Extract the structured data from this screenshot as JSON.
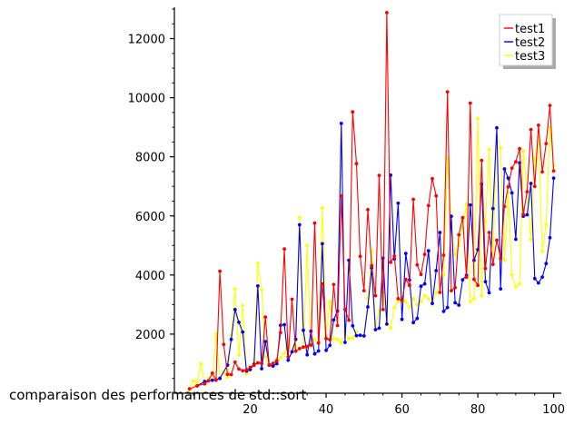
{
  "chart_data": {
    "type": "line",
    "title": "comparaison des performances de std::sort",
    "xlabel": "",
    "ylabel": "",
    "xlim": [
      0,
      102
    ],
    "ylim": [
      0,
      13000
    ],
    "x_ticks": [
      20,
      40,
      60,
      80,
      100
    ],
    "y_ticks": [
      2000,
      4000,
      6000,
      8000,
      10000,
      12000
    ],
    "grid": false,
    "legend_position": "top-right",
    "series": [
      {
        "name": "test1",
        "color": "#ff0000",
        "marker": "dot",
        "points": [
          [
            4,
            150
          ],
          [
            6,
            250
          ],
          [
            8,
            320
          ],
          [
            9,
            420
          ],
          [
            10,
            680
          ],
          [
            11,
            440
          ],
          [
            12,
            4130
          ],
          [
            13,
            1650
          ],
          [
            14,
            640
          ],
          [
            15,
            630
          ],
          [
            16,
            1050
          ],
          [
            17,
            820
          ],
          [
            18,
            760
          ],
          [
            19,
            790
          ],
          [
            20,
            880
          ],
          [
            21,
            940
          ],
          [
            22,
            1030
          ],
          [
            23,
            1010
          ],
          [
            24,
            2580
          ],
          [
            25,
            960
          ],
          [
            26,
            1010
          ],
          [
            27,
            1100
          ],
          [
            28,
            2050
          ],
          [
            29,
            4880
          ],
          [
            30,
            1230
          ],
          [
            31,
            3180
          ],
          [
            32,
            1420
          ],
          [
            33,
            1510
          ],
          [
            34,
            1560
          ],
          [
            35,
            1580
          ],
          [
            36,
            1630
          ],
          [
            37,
            5760
          ],
          [
            38,
            1700
          ],
          [
            39,
            3700
          ],
          [
            40,
            1850
          ],
          [
            41,
            1810
          ],
          [
            42,
            3680
          ],
          [
            43,
            2290
          ],
          [
            44,
            6680
          ],
          [
            45,
            2840
          ],
          [
            46,
            2470
          ],
          [
            47,
            9520
          ],
          [
            48,
            7770
          ],
          [
            49,
            4630
          ],
          [
            50,
            3470
          ],
          [
            51,
            6210
          ],
          [
            52,
            4320
          ],
          [
            53,
            3300
          ],
          [
            54,
            7370
          ],
          [
            55,
            2830
          ],
          [
            56,
            12880
          ],
          [
            57,
            4430
          ],
          [
            58,
            4640
          ],
          [
            59,
            3200
          ],
          [
            60,
            3140
          ],
          [
            61,
            3850
          ],
          [
            62,
            3650
          ],
          [
            63,
            6560
          ],
          [
            64,
            4340
          ],
          [
            65,
            4020
          ],
          [
            66,
            4700
          ],
          [
            67,
            6350
          ],
          [
            68,
            7260
          ],
          [
            69,
            6680
          ],
          [
            70,
            3410
          ],
          [
            71,
            4670
          ],
          [
            72,
            10200
          ],
          [
            73,
            3470
          ],
          [
            74,
            3570
          ],
          [
            75,
            5360
          ],
          [
            76,
            5940
          ],
          [
            77,
            3920
          ],
          [
            78,
            9820
          ],
          [
            79,
            3850
          ],
          [
            80,
            3650
          ],
          [
            81,
            7880
          ],
          [
            82,
            4220
          ],
          [
            83,
            5440
          ],
          [
            84,
            4360
          ],
          [
            85,
            5180
          ],
          [
            86,
            4560
          ],
          [
            87,
            6320
          ],
          [
            88,
            6980
          ],
          [
            89,
            7620
          ],
          [
            90,
            7830
          ],
          [
            91,
            8280
          ],
          [
            92,
            6050
          ],
          [
            93,
            6820
          ],
          [
            94,
            8920
          ],
          [
            95,
            7000
          ],
          [
            96,
            9070
          ],
          [
            97,
            7490
          ],
          [
            98,
            8450
          ],
          [
            99,
            9740
          ],
          [
            100,
            7520
          ]
        ]
      },
      {
        "name": "test2",
        "color": "#0000ff",
        "marker": "dot",
        "points": [
          [
            6,
            250
          ],
          [
            8,
            400
          ],
          [
            10,
            440
          ],
          [
            12,
            500
          ],
          [
            14,
            950
          ],
          [
            15,
            1820
          ],
          [
            16,
            2830
          ],
          [
            17,
            2400
          ],
          [
            18,
            2070
          ],
          [
            19,
            750
          ],
          [
            20,
            800
          ],
          [
            21,
            980
          ],
          [
            22,
            3630
          ],
          [
            23,
            830
          ],
          [
            24,
            1750
          ],
          [
            25,
            950
          ],
          [
            26,
            920
          ],
          [
            27,
            1000
          ],
          [
            28,
            2300
          ],
          [
            29,
            2320
          ],
          [
            30,
            1120
          ],
          [
            31,
            1400
          ],
          [
            32,
            1820
          ],
          [
            33,
            5700
          ],
          [
            34,
            2130
          ],
          [
            35,
            1300
          ],
          [
            36,
            2100
          ],
          [
            37,
            1330
          ],
          [
            38,
            1430
          ],
          [
            39,
            5060
          ],
          [
            40,
            1450
          ],
          [
            41,
            1620
          ],
          [
            42,
            2480
          ],
          [
            43,
            2780
          ],
          [
            44,
            9130
          ],
          [
            45,
            1720
          ],
          [
            46,
            4500
          ],
          [
            47,
            2280
          ],
          [
            48,
            1950
          ],
          [
            49,
            1960
          ],
          [
            50,
            1940
          ],
          [
            51,
            2920
          ],
          [
            52,
            4240
          ],
          [
            53,
            2150
          ],
          [
            54,
            2200
          ],
          [
            55,
            4570
          ],
          [
            56,
            2340
          ],
          [
            57,
            7380
          ],
          [
            58,
            4540
          ],
          [
            59,
            6430
          ],
          [
            60,
            2500
          ],
          [
            61,
            4730
          ],
          [
            62,
            3830
          ],
          [
            63,
            2390
          ],
          [
            64,
            2530
          ],
          [
            65,
            3620
          ],
          [
            66,
            3700
          ],
          [
            67,
            4820
          ],
          [
            68,
            3040
          ],
          [
            69,
            4150
          ],
          [
            70,
            5440
          ],
          [
            71,
            2770
          ],
          [
            72,
            2900
          ],
          [
            73,
            5990
          ],
          [
            74,
            3060
          ],
          [
            75,
            2980
          ],
          [
            76,
            3840
          ],
          [
            77,
            3990
          ],
          [
            78,
            6370
          ],
          [
            79,
            4500
          ],
          [
            80,
            4860
          ],
          [
            81,
            7080
          ],
          [
            82,
            3770
          ],
          [
            83,
            3400
          ],
          [
            84,
            6250
          ],
          [
            85,
            8980
          ],
          [
            86,
            3530
          ],
          [
            87,
            7590
          ],
          [
            88,
            7280
          ],
          [
            89,
            6780
          ],
          [
            90,
            5210
          ],
          [
            91,
            7800
          ],
          [
            92,
            5990
          ],
          [
            93,
            6040
          ],
          [
            94,
            7100
          ],
          [
            95,
            3880
          ],
          [
            96,
            3730
          ],
          [
            97,
            3930
          ],
          [
            98,
            4390
          ],
          [
            99,
            5260
          ],
          [
            100,
            7280
          ]
        ]
      },
      {
        "name": "test3",
        "color": "#ffff00",
        "marker": "dot",
        "points": [
          [
            4,
            100
          ],
          [
            5,
            420
          ],
          [
            6,
            350
          ],
          [
            7,
            1000
          ],
          [
            8,
            300
          ],
          [
            9,
            500
          ],
          [
            10,
            450
          ],
          [
            11,
            2000
          ],
          [
            12,
            480
          ],
          [
            13,
            700
          ],
          [
            14,
            540
          ],
          [
            15,
            1950
          ],
          [
            16,
            3530
          ],
          [
            17,
            1300
          ],
          [
            18,
            2970
          ],
          [
            19,
            650
          ],
          [
            20,
            800
          ],
          [
            21,
            1100
          ],
          [
            22,
            4400
          ],
          [
            23,
            3500
          ],
          [
            24,
            1220
          ],
          [
            25,
            950
          ],
          [
            26,
            1000
          ],
          [
            27,
            1140
          ],
          [
            28,
            1200
          ],
          [
            29,
            1350
          ],
          [
            30,
            1800
          ],
          [
            31,
            1400
          ],
          [
            32,
            1600
          ],
          [
            33,
            5950
          ],
          [
            34,
            1550
          ],
          [
            35,
            5000
          ],
          [
            36,
            1590
          ],
          [
            37,
            1820
          ],
          [
            38,
            1750
          ],
          [
            39,
            6270
          ],
          [
            40,
            1950
          ],
          [
            41,
            3100
          ],
          [
            42,
            1850
          ],
          [
            43,
            1820
          ],
          [
            44,
            1700
          ],
          [
            45,
            2050
          ],
          [
            46,
            1850
          ],
          [
            47,
            1870
          ],
          [
            48,
            2080
          ],
          [
            49,
            1940
          ],
          [
            50,
            1920
          ],
          [
            51,
            3200
          ],
          [
            52,
            4800
          ],
          [
            53,
            2300
          ],
          [
            54,
            2800
          ],
          [
            55,
            3400
          ],
          [
            56,
            2400
          ],
          [
            57,
            2200
          ],
          [
            58,
            2900
          ],
          [
            59,
            3100
          ],
          [
            60,
            3200
          ],
          [
            61,
            3100
          ],
          [
            62,
            2900
          ],
          [
            63,
            3200
          ],
          [
            64,
            3000
          ],
          [
            65,
            3100
          ],
          [
            66,
            3300
          ],
          [
            67,
            3200
          ],
          [
            68,
            3000
          ],
          [
            69,
            3400
          ],
          [
            70,
            3500
          ],
          [
            71,
            4000
          ],
          [
            72,
            7950
          ],
          [
            73,
            5800
          ],
          [
            74,
            4700
          ],
          [
            75,
            5000
          ],
          [
            76,
            5600
          ],
          [
            77,
            6400
          ],
          [
            78,
            3100
          ],
          [
            79,
            3200
          ],
          [
            80,
            9300
          ],
          [
            81,
            3300
          ],
          [
            82,
            5800
          ],
          [
            83,
            8250
          ],
          [
            84,
            4600
          ],
          [
            85,
            8700
          ],
          [
            86,
            8300
          ],
          [
            87,
            4500
          ],
          [
            88,
            6800
          ],
          [
            89,
            4000
          ],
          [
            90,
            3600
          ],
          [
            91,
            3700
          ],
          [
            92,
            8200
          ],
          [
            93,
            6800
          ],
          [
            94,
            5200
          ],
          [
            95,
            7900
          ],
          [
            96,
            8650
          ],
          [
            97,
            4800
          ],
          [
            98,
            5700
          ],
          [
            99,
            9000
          ],
          [
            100,
            7700
          ]
        ]
      }
    ]
  }
}
